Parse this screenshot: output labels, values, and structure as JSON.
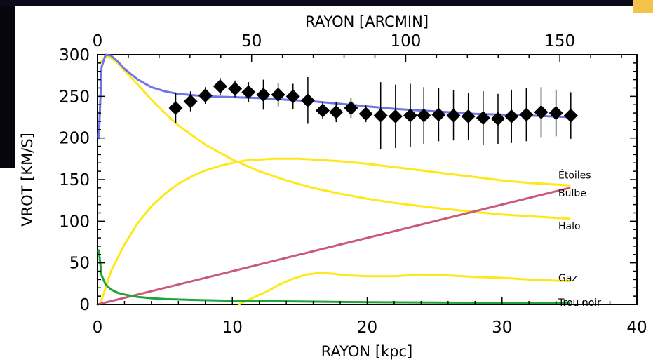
{
  "chart_data": {
    "type": "line",
    "title": "",
    "xlabel": "RAYON [kpc]",
    "ylabel": "VROT [KM/S]",
    "x2label": "RAYON [ARCMIN]",
    "xlim": [
      0,
      40
    ],
    "ylim": [
      0,
      300
    ],
    "x2lim": [
      0,
      175
    ],
    "x_ticks": [
      "0",
      "10",
      "20",
      "30",
      "40"
    ],
    "y_ticks": [
      "0",
      "50",
      "100",
      "150",
      "200",
      "250",
      "300"
    ],
    "x2_ticks": [
      "0",
      "50",
      "100",
      "150"
    ],
    "series": [
      {
        "name": "Étoiles",
        "color": "#ffe81a",
        "x": [
          0.2,
          1,
          2,
          3,
          4,
          5,
          6,
          7,
          8,
          9,
          10,
          11,
          12,
          13,
          14,
          15,
          16,
          18,
          20,
          22,
          24,
          26,
          28,
          30,
          32,
          35
        ],
        "y": [
          0,
          40,
          72,
          98,
          118,
          133,
          145,
          154,
          161,
          166,
          170,
          173,
          174,
          175,
          175,
          175,
          174,
          172,
          169,
          165,
          161,
          157,
          153,
          149,
          146,
          143
        ]
      },
      {
        "name": "Halo",
        "color": "#ffe81a",
        "x": [
          0.2,
          0.6,
          1,
          1.5,
          2,
          3,
          4,
          5,
          6,
          8,
          10,
          12,
          14,
          16,
          18,
          20,
          22,
          25,
          28,
          30,
          32,
          35
        ],
        "y": [
          290,
          298,
          296,
          290,
          281,
          264,
          246,
          230,
          215,
          192,
          174,
          160,
          149,
          140,
          133,
          127,
          122,
          116,
          111,
          108,
          106,
          103
        ]
      },
      {
        "name": "Bulbe",
        "color": "#c85a78",
        "x": [
          0,
          35
        ],
        "y": [
          0,
          140
        ]
      },
      {
        "name": "Gaz",
        "color": "#ffe81a",
        "x": [
          10.5,
          11.5,
          12.5,
          13.5,
          14.5,
          15.5,
          16.5,
          17.5,
          18.5,
          20,
          22,
          24,
          26,
          28,
          30,
          32,
          35
        ],
        "y": [
          0,
          8,
          15,
          24,
          31,
          36,
          38,
          37,
          35,
          34,
          34,
          36,
          35,
          33,
          32,
          30,
          28
        ]
      },
      {
        "name": "Trou noir",
        "color": "#22a33a",
        "x": [
          0.1,
          0.3,
          0.6,
          1,
          1.5,
          2,
          3,
          4,
          5,
          7,
          10,
          15,
          20,
          25,
          30,
          35
        ],
        "y": [
          65,
          35,
          24,
          18,
          14,
          12,
          9,
          7.5,
          6.5,
          5.5,
          4.5,
          3.5,
          2.8,
          2.3,
          2,
          1.5
        ]
      },
      {
        "name": "",
        "color": "#6f74e6",
        "x": [
          0.1,
          0.3,
          0.6,
          1,
          1.5,
          2,
          3,
          4,
          5,
          6,
          8,
          10,
          12,
          14,
          16,
          18,
          20,
          22,
          24,
          26,
          28,
          30,
          32,
          35
        ],
        "y": [
          200,
          285,
          300,
          299,
          292,
          283,
          270,
          261,
          256,
          253,
          250,
          249,
          248,
          246,
          244,
          241,
          238,
          235,
          233,
          231,
          229,
          228,
          227,
          225
        ]
      }
    ],
    "observations": {
      "x": [
        5.8,
        6.9,
        8.0,
        9.1,
        10.2,
        11.2,
        12.3,
        13.4,
        14.5,
        15.6,
        16.7,
        17.7,
        18.8,
        19.9,
        21.0,
        22.1,
        23.2,
        24.2,
        25.3,
        26.4,
        27.5,
        28.6,
        29.7,
        30.7,
        31.8,
        32.9,
        34.0,
        35.1
      ],
      "y": [
        236,
        244,
        251,
        262,
        259,
        255,
        252,
        252,
        250,
        245,
        233,
        231,
        236,
        229,
        227,
        226,
        227,
        227,
        228,
        227,
        226,
        224,
        223,
        226,
        228,
        231,
        230,
        227
      ],
      "err": [
        18,
        12,
        10,
        10,
        10,
        12,
        18,
        14,
        15,
        28,
        10,
        12,
        12,
        10,
        40,
        38,
        38,
        34,
        32,
        30,
        28,
        32,
        30,
        32,
        32,
        30,
        28,
        28
      ]
    }
  }
}
